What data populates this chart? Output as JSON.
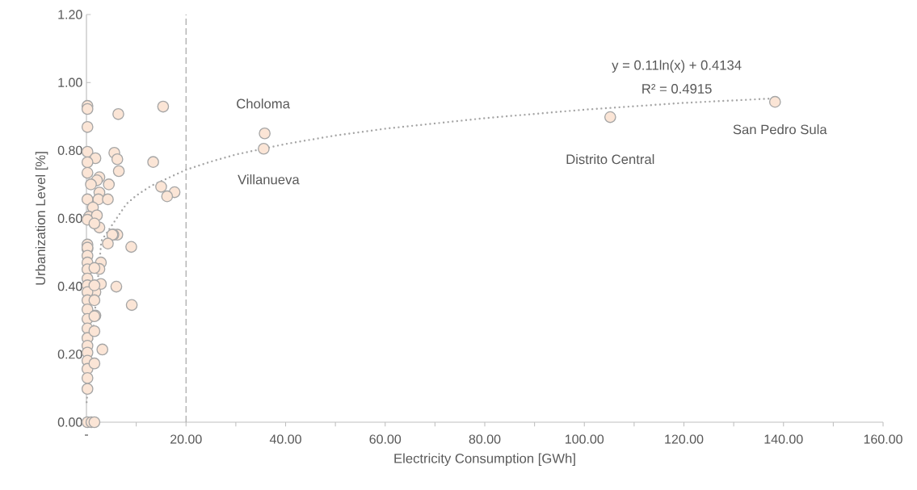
{
  "chart_data": {
    "type": "scatter",
    "xlabel": "Electricity Consumption [GWh]",
    "ylabel": "Urbanization Level [%]",
    "xlim": [
      0,
      160
    ],
    "ylim": [
      0,
      1.2
    ],
    "xticks": [
      {
        "value": 0,
        "label": "-"
      },
      {
        "value": 10,
        "label": null
      },
      {
        "value": 20,
        "label": "20.00"
      },
      {
        "value": 30,
        "label": null
      },
      {
        "value": 40,
        "label": "40.00"
      },
      {
        "value": 50,
        "label": null
      },
      {
        "value": 60,
        "label": "60.00"
      },
      {
        "value": 70,
        "label": null
      },
      {
        "value": 80,
        "label": "80.00"
      },
      {
        "value": 90,
        "label": null
      },
      {
        "value": 100,
        "label": "100.00"
      },
      {
        "value": 110,
        "label": null
      },
      {
        "value": 120,
        "label": "120.00"
      },
      {
        "value": 130,
        "label": null
      },
      {
        "value": 140,
        "label": "140.00"
      },
      {
        "value": 150,
        "label": null
      },
      {
        "value": 160,
        "label": "160.00"
      }
    ],
    "yticks": [
      {
        "value": 0,
        "label": "0.00"
      },
      {
        "value": 0.2,
        "label": "0.20"
      },
      {
        "value": 0.4,
        "label": "0.40"
      },
      {
        "value": 0.6,
        "label": "0.60"
      },
      {
        "value": 0.8,
        "label": "0.80"
      },
      {
        "value": 1.0,
        "label": "1.00"
      },
      {
        "value": 1.2,
        "label": "1.20"
      }
    ],
    "ref_lines": [
      {
        "axis": "x",
        "value": 20,
        "color": "#a6a6a6",
        "line_style": "dashed"
      }
    ],
    "annotations": [
      {
        "text": "Choloma",
        "x": 35.8,
        "y": 0.85
      },
      {
        "text": "Villanueva",
        "x": 35.6,
        "y": 0.805
      },
      {
        "text": "Distrito Central",
        "x": 105.2,
        "y": 0.898
      },
      {
        "text": "San Pedro Sula",
        "x": 138.3,
        "y": 0.943
      },
      "y = 0.11ln(x) + 0.4134",
      "R² = 0.4915"
    ],
    "series": [
      {
        "type": "scatter",
        "color": "#fbe5d6",
        "marker": "circle",
        "x": [
          138.3,
          105.2,
          35.8,
          35.6,
          15.4,
          13.4,
          15.0,
          17.7,
          16.2,
          6.4,
          5.6,
          6.2,
          6.5,
          6.2,
          5.4,
          9.0,
          6.0,
          9.1,
          0.2,
          0.2,
          0.2,
          0.2,
          1.8,
          0.2,
          0.2,
          2.6,
          2.1,
          0.9,
          4.5,
          0.2,
          2.6,
          2.4,
          4.3,
          1.3,
          0.5,
          2.1,
          0.2,
          2.6,
          1.6,
          5.2,
          4.3,
          0.2,
          0.2,
          2.9,
          2.6,
          2.9,
          3.2,
          1.8,
          1.8,
          0.2,
          0.2,
          0.2,
          0.2,
          0.2,
          0.2,
          0.2,
          0.2,
          0.2,
          0.2,
          0.2,
          0.2,
          0.2,
          0.2,
          0.2,
          0.2,
          0.2,
          0.2,
          1.6,
          1.6,
          1.6,
          1.6,
          1.6,
          1.6,
          0.2,
          1.0,
          1.6
        ],
        "values": [
          0.943,
          0.898,
          0.85,
          0.805,
          0.929,
          0.766,
          0.693,
          0.677,
          0.665,
          0.907,
          0.793,
          0.774,
          0.739,
          0.552,
          0.552,
          0.516,
          0.399,
          0.345,
          0.931,
          0.922,
          0.869,
          0.796,
          0.777,
          0.765,
          0.734,
          0.721,
          0.712,
          0.7,
          0.7,
          0.656,
          0.676,
          0.656,
          0.656,
          0.632,
          0.605,
          0.609,
          0.596,
          0.573,
          0.585,
          0.552,
          0.526,
          0.523,
          0.51,
          0.47,
          0.451,
          0.407,
          0.214,
          0.314,
          0.383,
          0.514,
          0.49,
          0.47,
          0.45,
          0.423,
          0.403,
          0.383,
          0.359,
          0.332,
          0.304,
          0.276,
          0.248,
          0.225,
          0.205,
          0.181,
          0.157,
          0.13,
          0.098,
          0.454,
          0.403,
          0.359,
          0.312,
          0.268,
          0.173,
          0,
          0,
          0
        ]
      },
      {
        "type": "line",
        "color": "#a6a6a6",
        "line_style": "dotted",
        "marker": "none",
        "x": [
          0.04,
          3,
          8,
          10,
          13,
          20,
          25,
          30,
          40,
          50,
          60,
          80,
          100,
          120,
          138
        ],
        "values": [
          0.059,
          0.534,
          0.642,
          0.667,
          0.696,
          0.743,
          0.767,
          0.788,
          0.819,
          0.844,
          0.864,
          0.895,
          0.92,
          0.94,
          0.953
        ]
      }
    ]
  }
}
